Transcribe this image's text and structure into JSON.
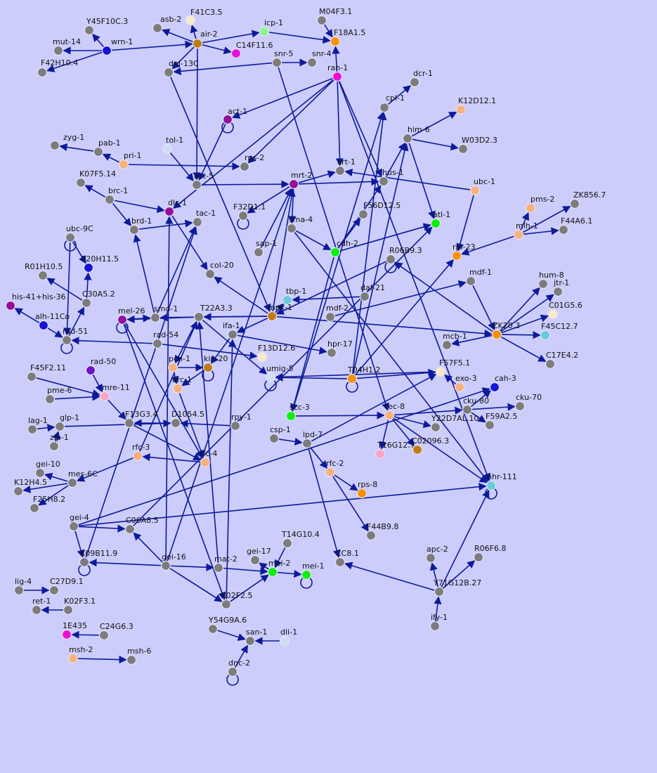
{
  "palette": {
    "background": "#cccdfb",
    "edge": "#0d1a9a",
    "gray": "#7c7c7c",
    "blue": "#1414dc",
    "green": "#0cf00c",
    "orange": "#f79200",
    "magenta": "#ea0fd5",
    "purple": "#940d9c",
    "peach": "#f8b07e",
    "pink": "#f9a4c7",
    "cyan": "#66cbdc",
    "lightgreen": "#8cf58c",
    "cream": "#f9e8c9",
    "lightblue": "#d0def4",
    "brown": "#c07c14",
    "violet": "#6e12c6"
  },
  "nodes": [
    {
      "id": "Y45F10C.3",
      "color": "gray"
    },
    {
      "id": "wrn-1",
      "color": "blue"
    },
    {
      "id": "mut-14",
      "color": "gray"
    },
    {
      "id": "F42H10.4",
      "color": "gray"
    },
    {
      "id": "asb-2",
      "color": "gray"
    },
    {
      "id": "F41C3.5",
      "color": "cream"
    },
    {
      "id": "air-2",
      "color": "brown"
    },
    {
      "id": "C14F11.6",
      "color": "magenta"
    },
    {
      "id": "icp-1",
      "color": "lightgreen"
    },
    {
      "id": "M04F3.1",
      "color": "gray"
    },
    {
      "id": "F18A1.5",
      "color": "orange"
    },
    {
      "id": "dnj-13C",
      "color": "gray"
    },
    {
      "id": "snr-5",
      "color": "gray"
    },
    {
      "id": "snr-4",
      "color": "gray"
    },
    {
      "id": "ran-1",
      "color": "magenta"
    },
    {
      "id": "dcr-1",
      "color": "gray"
    },
    {
      "id": "cpl-1",
      "color": "gray"
    },
    {
      "id": "K12D12.1",
      "color": "peach"
    },
    {
      "id": "act-1",
      "color": "purple"
    },
    {
      "id": "him-6",
      "color": "gray"
    },
    {
      "id": "W03D2.3",
      "color": "gray"
    },
    {
      "id": "zyg-1",
      "color": "gray"
    },
    {
      "id": "pab-1",
      "color": "gray"
    },
    {
      "id": "tol-1",
      "color": "lightblue"
    },
    {
      "id": "pri-1",
      "color": "peach"
    },
    {
      "id": "rps-2",
      "color": "gray"
    },
    {
      "id": "crt-1",
      "color": "gray"
    },
    {
      "id": "ubc-1",
      "color": "peach"
    },
    {
      "id": "K07F5.14",
      "color": "gray"
    },
    {
      "id": "act-5",
      "color": "gray"
    },
    {
      "id": "mrt-2",
      "color": "purple"
    },
    {
      "id": "hus-1",
      "color": "gray"
    },
    {
      "id": "pms-2",
      "color": "peach"
    },
    {
      "id": "ZK856.7",
      "color": "gray"
    },
    {
      "id": "brc-1",
      "color": "gray"
    },
    {
      "id": "dlc-1",
      "color": "purple"
    },
    {
      "id": "F32D1.1",
      "color": "gray"
    },
    {
      "id": "F56D12.5",
      "color": "gray"
    },
    {
      "id": "mlh-1",
      "color": "peach"
    },
    {
      "id": "F44A6.1",
      "color": "gray"
    },
    {
      "id": "brd-1",
      "color": "gray"
    },
    {
      "id": "tac-1",
      "color": "gray"
    },
    {
      "id": "sma-4",
      "color": "gray"
    },
    {
      "id": "atl-1",
      "color": "green"
    },
    {
      "id": "ubc-9C",
      "color": "gray"
    },
    {
      "id": "cdh-2",
      "color": "green"
    },
    {
      "id": "sap-1",
      "color": "gray"
    },
    {
      "id": "R06B9.3",
      "color": "gray"
    },
    {
      "id": "rpl-23",
      "color": "orange"
    },
    {
      "id": "F20H11.5",
      "color": "blue"
    },
    {
      "id": "col-20",
      "color": "gray"
    },
    {
      "id": "mdf-1",
      "color": "gray"
    },
    {
      "id": "R01H10.5",
      "color": "gray"
    },
    {
      "id": "hum-8",
      "color": "gray"
    },
    {
      "id": "jtr-1",
      "color": "gray"
    },
    {
      "id": "tbp-1",
      "color": "cyan"
    },
    {
      "id": "C30A5.2",
      "color": "gray"
    },
    {
      "id": "daf-21",
      "color": "gray"
    },
    {
      "id": "his-41+his-36",
      "color": "purple"
    },
    {
      "id": "C01G5.6",
      "color": "cream"
    },
    {
      "id": "T22A3.3",
      "color": "gray"
    },
    {
      "id": "mpk-1",
      "color": "brown"
    },
    {
      "id": "mdf-2",
      "color": "gray"
    },
    {
      "id": "mel-26",
      "color": "purple"
    },
    {
      "id": "smo-1",
      "color": "gray"
    },
    {
      "id": "alh-11Co",
      "color": "blue"
    },
    {
      "id": "ZK20.3",
      "color": "orange"
    },
    {
      "id": "F45C12.7",
      "color": "cyan"
    },
    {
      "id": "ifa-1",
      "color": "gray"
    },
    {
      "id": "mcb-1",
      "color": "gray"
    },
    {
      "id": "rad-51",
      "color": "gray"
    },
    {
      "id": "rad-54",
      "color": "gray"
    },
    {
      "id": "hpr-17",
      "color": "gray"
    },
    {
      "id": "F13D12.6",
      "color": "cream"
    },
    {
      "id": "C17E4.2",
      "color": "gray"
    },
    {
      "id": "rad-50",
      "color": "violet"
    },
    {
      "id": "F45F2.11",
      "color": "gray"
    },
    {
      "id": "pcn-1",
      "color": "peach"
    },
    {
      "id": "kin-20",
      "color": "brown"
    },
    {
      "id": "F57F5.1",
      "color": "cream"
    },
    {
      "id": "T04H1.2",
      "color": "orange"
    },
    {
      "id": "umig-5",
      "color": "lightblue"
    },
    {
      "id": "arc-1",
      "color": "peach"
    },
    {
      "id": "exo-3",
      "color": "peach"
    },
    {
      "id": "cah-3",
      "color": "blue"
    },
    {
      "id": "pme-6",
      "color": "gray"
    },
    {
      "id": "mre-11",
      "color": "pink"
    },
    {
      "id": "cku-80",
      "color": "gray"
    },
    {
      "id": "cku-70",
      "color": "gray"
    },
    {
      "id": "lag-1",
      "color": "gray"
    },
    {
      "id": "scc-3",
      "color": "green"
    },
    {
      "id": "rec-8",
      "color": "peach"
    },
    {
      "id": "F13G3.4",
      "color": "gray"
    },
    {
      "id": "D1054.5",
      "color": "gray"
    },
    {
      "id": "rpy-1",
      "color": "gray"
    },
    {
      "id": "glp-1",
      "color": "gray"
    },
    {
      "id": "F59A2.5",
      "color": "gray"
    },
    {
      "id": "Y22D7AL.10",
      "color": "gray"
    },
    {
      "id": "csp-1",
      "color": "gray"
    },
    {
      "id": "zip-1",
      "color": "gray"
    },
    {
      "id": "lpd-7",
      "color": "gray"
    },
    {
      "id": "T16G12.7",
      "color": "pink"
    },
    {
      "id": "C02096.3",
      "color": "brown"
    },
    {
      "id": "rfc-3",
      "color": "peach"
    },
    {
      "id": "rfc-4",
      "color": "peach"
    },
    {
      "id": "gei-10",
      "color": "gray"
    },
    {
      "id": "mes-6C",
      "color": "gray"
    },
    {
      "id": "K12H4.5",
      "color": "gray"
    },
    {
      "id": "rfc-2",
      "color": "peach"
    },
    {
      "id": "nhr-111",
      "color": "cyan"
    },
    {
      "id": "rps-8",
      "color": "orange"
    },
    {
      "id": "F25H8.2",
      "color": "gray"
    },
    {
      "id": "gei-4",
      "color": "gray"
    },
    {
      "id": "C06A8.5",
      "color": "gray"
    },
    {
      "id": "F44B9.8",
      "color": "gray"
    },
    {
      "id": "T14G10.4",
      "color": "gray"
    },
    {
      "id": "apc-2",
      "color": "gray"
    },
    {
      "id": "R06F6.8",
      "color": "gray"
    },
    {
      "id": "K09B11.9",
      "color": "gray"
    },
    {
      "id": "gei-16",
      "color": "gray"
    },
    {
      "id": "mat-2",
      "color": "gray"
    },
    {
      "id": "gei-17",
      "color": "gray"
    },
    {
      "id": "CC8.1",
      "color": "gray"
    },
    {
      "id": "mei-2",
      "color": "green"
    },
    {
      "id": "mei-1",
      "color": "green"
    },
    {
      "id": "Y71G12B.27",
      "color": "gray"
    },
    {
      "id": "lig-4",
      "color": "gray"
    },
    {
      "id": "C27D9.1",
      "color": "gray"
    },
    {
      "id": "R02F2.5",
      "color": "gray"
    },
    {
      "id": "ret-1",
      "color": "gray"
    },
    {
      "id": "K02F3.1",
      "color": "gray"
    },
    {
      "id": "ify-1",
      "color": "gray"
    },
    {
      "id": "Y54G9A.6",
      "color": "gray"
    },
    {
      "id": "1E435",
      "color": "magenta"
    },
    {
      "id": "C24G6.3",
      "color": "gray"
    },
    {
      "id": "san-1",
      "color": "gray"
    },
    {
      "id": "dli-1",
      "color": "lightblue"
    },
    {
      "id": "msh-2",
      "color": "peach"
    },
    {
      "id": "msh-6",
      "color": "gray"
    },
    {
      "id": "dnc-2",
      "color": "gray"
    }
  ],
  "edges": [
    [
      "wrn-1",
      "Y45F10C.3"
    ],
    [
      "wrn-1",
      "mut-14"
    ],
    [
      "wrn-1",
      "F42H10.4"
    ],
    [
      "wrn-1",
      "air-2"
    ],
    [
      "air-2",
      "asb-2"
    ],
    [
      "air-2",
      "F41C3.5"
    ],
    [
      "air-2",
      "C14F11.6"
    ],
    [
      "air-2",
      "icp-1"
    ],
    [
      "air-2",
      "dnj-13C"
    ],
    [
      "air-2",
      "act-5"
    ],
    [
      "icp-1",
      "F18A1.5"
    ],
    [
      "M04F3.1",
      "F18A1.5"
    ],
    [
      "ran-1",
      "F18A1.5"
    ],
    [
      "snr-5",
      "dnj-13C"
    ],
    [
      "snr-5",
      "snr-4"
    ],
    [
      "ran-1",
      "act-1"
    ],
    [
      "ran-1",
      "crt-1"
    ],
    [
      "ran-1",
      "rps-2"
    ],
    [
      "ran-1",
      "dlc-1"
    ],
    [
      "cpl-1",
      "dcr-1"
    ],
    [
      "him-6",
      "K12D12.1"
    ],
    [
      "him-6",
      "W03D2.3"
    ],
    [
      "him-6",
      "atl-1"
    ],
    [
      "hus-1",
      "him-6"
    ],
    [
      "pab-1",
      "zyg-1"
    ],
    [
      "pri-1",
      "pab-1"
    ],
    [
      "pri-1",
      "rps-2"
    ],
    [
      "tol-1",
      "act-5"
    ],
    [
      "act-1",
      "act-5"
    ],
    [
      "ubc-1",
      "crt-1"
    ],
    [
      "mrt-2",
      "crt-1"
    ],
    [
      "mrt-2",
      "hus-1"
    ],
    [
      "act-5",
      "mrt-2"
    ],
    [
      "mlh-1",
      "pms-2"
    ],
    [
      "mlh-1",
      "ZK856.7"
    ],
    [
      "mlh-1",
      "F44A6.1"
    ],
    [
      "mlh-1",
      "rpl-23"
    ],
    [
      "brc-1",
      "K07F5.14"
    ],
    [
      "brc-1",
      "dlc-1"
    ],
    [
      "brc-1",
      "brd-1"
    ],
    [
      "brd-1",
      "tac-1"
    ],
    [
      "dlc-1",
      "col-20"
    ],
    [
      "mrt-2",
      "F32D1.1"
    ],
    [
      "cdh-2",
      "atl-1"
    ],
    [
      "cdh-2",
      "F56D12.5"
    ],
    [
      "cdh-2",
      "hus-1"
    ],
    [
      "sap-1",
      "mrt-2"
    ],
    [
      "sma-4",
      "cdh-2"
    ],
    [
      "mrt-2",
      "sma-4"
    ],
    [
      "ubc-9C",
      "F20H11.5"
    ],
    [
      "C30A5.2",
      "R01H10.5"
    ],
    [
      "C30A5.2",
      "F20H11.5"
    ],
    [
      "rad-51",
      "C30A5.2"
    ],
    [
      "alh-11Co",
      "his-41+his-36"
    ],
    [
      "alh-11Co",
      "rad-51"
    ],
    [
      "mdf-1",
      "ZK20.3"
    ],
    [
      "ZK20.3",
      "hum-8"
    ],
    [
      "ZK20.3",
      "jtr-1"
    ],
    [
      "ZK20.3",
      "C01G5.6"
    ],
    [
      "ZK20.3",
      "F45C12.7"
    ],
    [
      "ZK20.3",
      "C17E4.2"
    ],
    [
      "ZK20.3",
      "mcb-1"
    ],
    [
      "ZK20.3",
      "R06B9.3"
    ],
    [
      "R06B9.3",
      "mpk-1"
    ],
    [
      "mdf-2",
      "mdf-1"
    ],
    [
      "daf-21",
      "tbp-1"
    ],
    [
      "mpk-1",
      "T22A3.3"
    ],
    [
      "mpk-1",
      "smo-1"
    ],
    [
      "mpk-1",
      "tbp-1"
    ],
    [
      "mpk-1",
      "ifa-1"
    ],
    [
      "mpk-1",
      "mrt-2"
    ],
    [
      "mpk-1",
      "col-20"
    ],
    [
      "mpk-1",
      "ZK20.3"
    ],
    [
      "mel-26",
      "smo-1"
    ],
    [
      "rad-54",
      "rad-51"
    ],
    [
      "rad-54",
      "F13D12.6"
    ],
    [
      "ifa-1",
      "hpr-17"
    ],
    [
      "ifa-1",
      "kin-20"
    ],
    [
      "pcn-1",
      "kin-20"
    ],
    [
      "pcn-1",
      "arc-1"
    ],
    [
      "F57F5.1",
      "umig-5"
    ],
    [
      "T04H1.2",
      "umig-5"
    ],
    [
      "T04H1.2",
      "F57F5.1"
    ],
    [
      "T04H1.2",
      "rpl-23"
    ],
    [
      "exo-3",
      "F57F5.1"
    ],
    [
      "cku-80",
      "cah-3"
    ],
    [
      "cku-80",
      "cku-70"
    ],
    [
      "cku-80",
      "F59A2.5"
    ],
    [
      "rad-50",
      "mre-11"
    ],
    [
      "F45F2.11",
      "mre-11"
    ],
    [
      "pme-6",
      "mre-11"
    ],
    [
      "mre-11",
      "F13G3.4"
    ],
    [
      "lag-1",
      "glp-1"
    ],
    [
      "glp-1",
      "D1054.5"
    ],
    [
      "zip-1",
      "glp-1"
    ],
    [
      "scc-3",
      "rec-8"
    ],
    [
      "rec-8",
      "Y22D7AL.10"
    ],
    [
      "rec-8",
      "T16G12.7"
    ],
    [
      "rec-8",
      "C02096.3"
    ],
    [
      "rec-8",
      "nhr-111"
    ],
    [
      "rec-8",
      "cku-80"
    ],
    [
      "csp-1",
      "lpd-7"
    ],
    [
      "lpd-7",
      "rfc-2"
    ],
    [
      "lpd-7",
      "CC8.1"
    ],
    [
      "rfc-2",
      "rps-8"
    ],
    [
      "rfc-2",
      "F44B9.8"
    ],
    [
      "rfc-4",
      "rfc-3"
    ],
    [
      "rfc-3",
      "mes-6C"
    ],
    [
      "mes-6C",
      "gei-10"
    ],
    [
      "mes-6C",
      "K12H4.5"
    ],
    [
      "mes-6C",
      "F25H8.2"
    ],
    [
      "gei-4",
      "nhr-111"
    ],
    [
      "gei-4",
      "C06A8.5"
    ],
    [
      "gei-4",
      "K09B11.9"
    ],
    [
      "gei-16",
      "K09B11.9"
    ],
    [
      "gei-16",
      "C06A8.5"
    ],
    [
      "gei-16",
      "mat-2"
    ],
    [
      "gei-16",
      "R02F2.5"
    ],
    [
      "mei-2",
      "gei-17"
    ],
    [
      "mei-2",
      "mei-1"
    ],
    [
      "T14G10.4",
      "mei-2"
    ],
    [
      "mat-2",
      "mei-2"
    ],
    [
      "R02F2.5",
      "mei-2"
    ],
    [
      "Y71G12B.27",
      "apc-2"
    ],
    [
      "Y71G12B.27",
      "R06F6.8"
    ],
    [
      "Y71G12B.27",
      "CC8.1"
    ],
    [
      "Y71G12B.27",
      "nhr-111"
    ],
    [
      "ify-1",
      "Y71G12B.27"
    ],
    [
      "lig-4",
      "C27D9.1"
    ],
    [
      "K02F3.1",
      "ret-1"
    ],
    [
      "C24G6.3",
      "1E435"
    ],
    [
      "msh-2",
      "msh-6"
    ],
    [
      "Y54G9A.6",
      "san-1"
    ],
    [
      "dli-1",
      "san-1"
    ],
    [
      "dnc-2",
      "san-1"
    ],
    [
      "rpy-1",
      "D1054.5"
    ],
    [
      "D1054.5",
      "F13G3.4"
    ],
    [
      "F13G3.4",
      "rfc-4"
    ],
    [
      "arc-1",
      "rfc-4"
    ],
    [
      "kin-20",
      "arc-1"
    ],
    [
      "T22A3.3",
      "mel-26"
    ],
    [
      "T22A3.3",
      "pcn-1"
    ],
    [
      "T22A3.3",
      "umig-5"
    ],
    [
      "ran-1",
      "hus-1"
    ],
    [
      "dnj-13C",
      "mpk-1"
    ],
    [
      "scc-3",
      "cpl-1"
    ],
    [
      "T04H1.2",
      "cpl-1"
    ],
    [
      "T04H1.2",
      "him-6"
    ],
    [
      "lpd-7",
      "F57F5.1"
    ],
    [
      "ran-1",
      "nhr-111"
    ],
    [
      "gei-4",
      "cah-3"
    ],
    [
      "C06A8.5",
      "atl-1"
    ],
    [
      "mel-26",
      "R02F2.5"
    ],
    [
      "mel-26",
      "rfc-4"
    ],
    [
      "K09B11.9",
      "tac-1"
    ],
    [
      "gei-16",
      "dlc-1"
    ],
    [
      "gei-16",
      "mrt-2"
    ],
    [
      "R02F2.5",
      "ifa-1"
    ],
    [
      "mat-2",
      "T22A3.3"
    ],
    [
      "rfc-3",
      "T22A3.3"
    ],
    [
      "smo-1",
      "tac-1"
    ],
    [
      "smo-1",
      "brd-1"
    ],
    [
      "ubc-1",
      "rpl-23"
    ],
    [
      "snr-5",
      "rec-8"
    ],
    [
      "sma-4",
      "nhr-111"
    ],
    [
      "cdh-2",
      "scc-3"
    ],
    [
      "ubc-9C",
      "rad-51"
    ]
  ],
  "self_loops": [
    "act-1",
    "F32D1.1",
    "ubc-9C",
    "R06B9.3",
    "mel-26",
    "rad-51",
    "kin-20",
    "umig-5",
    "T04H1.2",
    "K09B11.9",
    "mei-1",
    "nhr-111",
    "dnc-2"
  ]
}
